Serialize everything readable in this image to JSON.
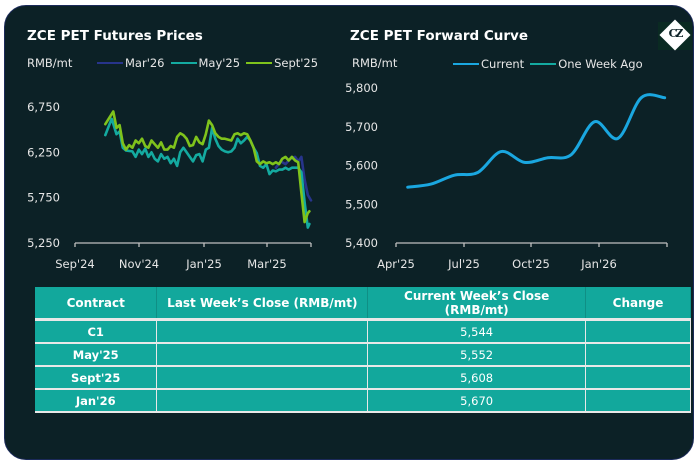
{
  "left_chart": {
    "title": "ZCE PET Futures Prices",
    "unit": "RMB/mt",
    "legend": [
      {
        "name": "Mar'26",
        "color": "#27348b"
      },
      {
        "name": "May'25",
        "color": "#14aaa0"
      },
      {
        "name": "Sept'25",
        "color": "#7fc31c"
      }
    ]
  },
  "right_chart": {
    "title": "ZCE PET Forward Curve",
    "unit": "RMB/mt",
    "legend": [
      {
        "name": "Current",
        "color": "#1aa7e0"
      },
      {
        "name": "One Week Ago",
        "color": "#14aaa0"
      }
    ]
  },
  "logo": {
    "text": "CZ"
  },
  "chart_data": [
    {
      "type": "line",
      "title": "ZCE PET Futures Prices",
      "ylabel": "RMB/mt",
      "xlabel": "",
      "ylim": [
        5250,
        6750
      ],
      "yticks": [
        "6,750",
        "6,250",
        "5,750",
        "5,250"
      ],
      "ytick_values": [
        6750,
        6250,
        5750,
        5250
      ],
      "xticks": [
        "Sep'24",
        "Nov'24",
        "Jan'25",
        "Mar'25"
      ],
      "xrange_months": [
        0,
        7.4
      ],
      "legend_position": "top",
      "grid": false,
      "series": [
        {
          "name": "Mar'26",
          "color": "#27348b",
          "x": [
            6.3,
            6.45,
            6.6,
            6.75,
            6.9,
            7.0,
            7.1,
            7.2,
            7.3,
            7.4
          ],
          "values": [
            6080,
            6150,
            6120,
            6180,
            6200,
            6150,
            6200,
            5950,
            5780,
            5720
          ]
        },
        {
          "name": "May'25",
          "color": "#14aaa0",
          "x": [
            0.95,
            1.15,
            1.3,
            1.4,
            1.5,
            1.6,
            1.8,
            1.9,
            2.0,
            2.1,
            2.2,
            2.3,
            2.4,
            2.5,
            2.6,
            2.7,
            2.8,
            2.9,
            3.0,
            3.1,
            3.2,
            3.3,
            3.4,
            3.5,
            3.6,
            3.7,
            3.8,
            3.9,
            4.0,
            4.1,
            4.2,
            4.3,
            4.4,
            4.5,
            4.6,
            4.7,
            4.8,
            4.9,
            5.0,
            5.1,
            5.2,
            5.3,
            5.4,
            5.5,
            5.6,
            5.7,
            5.8,
            5.9,
            6.0,
            6.1,
            6.2,
            6.3,
            6.4,
            6.5,
            6.6,
            6.7,
            6.8,
            6.9,
            7.0,
            7.1,
            7.2,
            7.3,
            7.35
          ],
          "values": [
            6440,
            6620,
            6450,
            6480,
            6300,
            6270,
            6260,
            6200,
            6280,
            6230,
            6290,
            6200,
            6250,
            6180,
            6150,
            6230,
            6180,
            6200,
            6130,
            6180,
            6100,
            6250,
            6300,
            6250,
            6200,
            6150,
            6220,
            6230,
            6150,
            6280,
            6300,
            6520,
            6400,
            6320,
            6280,
            6260,
            6250,
            6260,
            6300,
            6400,
            6350,
            6380,
            6420,
            6380,
            6300,
            6240,
            6100,
            6080,
            6120,
            6010,
            6050,
            6040,
            6060,
            6060,
            6080,
            6060,
            6080,
            6080,
            6080,
            6030,
            5700,
            5420,
            5460
          ]
        },
        {
          "name": "Sept'25",
          "color": "#7fc31c",
          "x": [
            0.95,
            1.2,
            1.3,
            1.4,
            1.5,
            1.6,
            1.7,
            1.8,
            1.9,
            2.0,
            2.1,
            2.2,
            2.3,
            2.4,
            2.5,
            2.6,
            2.7,
            2.8,
            2.9,
            3.0,
            3.1,
            3.2,
            3.3,
            3.4,
            3.5,
            3.6,
            3.7,
            3.8,
            3.9,
            4.0,
            4.1,
            4.2,
            4.3,
            4.4,
            4.5,
            4.6,
            4.7,
            4.8,
            4.9,
            5.0,
            5.1,
            5.2,
            5.3,
            5.4,
            5.5,
            5.6,
            5.7,
            5.8,
            5.9,
            6.0,
            6.1,
            6.2,
            6.3,
            6.4,
            6.5,
            6.6,
            6.7,
            6.8,
            6.9,
            7.0,
            7.1,
            7.2,
            7.3,
            7.35
          ],
          "values": [
            6560,
            6700,
            6520,
            6550,
            6350,
            6280,
            6330,
            6300,
            6380,
            6350,
            6400,
            6320,
            6300,
            6380,
            6340,
            6300,
            6360,
            6280,
            6280,
            6320,
            6300,
            6420,
            6460,
            6440,
            6400,
            6320,
            6330,
            6420,
            6360,
            6340,
            6450,
            6600,
            6550,
            6460,
            6420,
            6400,
            6400,
            6390,
            6380,
            6450,
            6460,
            6440,
            6460,
            6450,
            6380,
            6300,
            6150,
            6120,
            6150,
            6130,
            6140,
            6120,
            6140,
            6120,
            6180,
            6200,
            6160,
            6200,
            6160,
            6140,
            5800,
            5480,
            5580,
            5600
          ]
        }
      ]
    },
    {
      "type": "line",
      "title": "ZCE PET Forward Curve",
      "ylabel": "RMB/mt",
      "xlabel": "",
      "ylim": [
        5400,
        5800
      ],
      "yticks": [
        "5,800",
        "5,700",
        "5,600",
        "5,500",
        "5,400"
      ],
      "ytick_values": [
        5800,
        5700,
        5600,
        5500,
        5400
      ],
      "xticks": [
        "Apr'25",
        "Jul'25",
        "Oct'25",
        "Jan'26"
      ],
      "xrange_months": [
        0,
        11.6
      ],
      "legend_position": "top",
      "grid": false,
      "series": [
        {
          "name": "Current",
          "color": "#1aa7e0",
          "x": [
            0.5,
            1.5,
            2.5,
            3.5,
            4.5,
            5.5,
            6.5,
            7.5,
            8.5,
            9.5,
            10.5,
            11.5
          ],
          "values": [
            5544,
            5552,
            5575,
            5582,
            5636,
            5608,
            5620,
            5628,
            5713,
            5670,
            5775,
            5775
          ]
        },
        {
          "name": "One Week Ago",
          "color": "#14aaa0",
          "x": [],
          "values": []
        }
      ]
    }
  ],
  "table": {
    "headers": [
      "Contract",
      "Last Week’s Close (RMB/mt)",
      "Current Week’s Close (RMB/mt)",
      "Change"
    ],
    "rows": [
      [
        "C1",
        "",
        "5,544",
        ""
      ],
      [
        "May'25",
        "",
        "5,552",
        ""
      ],
      [
        "Sept'25",
        "",
        "5,608",
        ""
      ],
      [
        "Jan'26",
        "",
        "5,670",
        ""
      ]
    ]
  }
}
